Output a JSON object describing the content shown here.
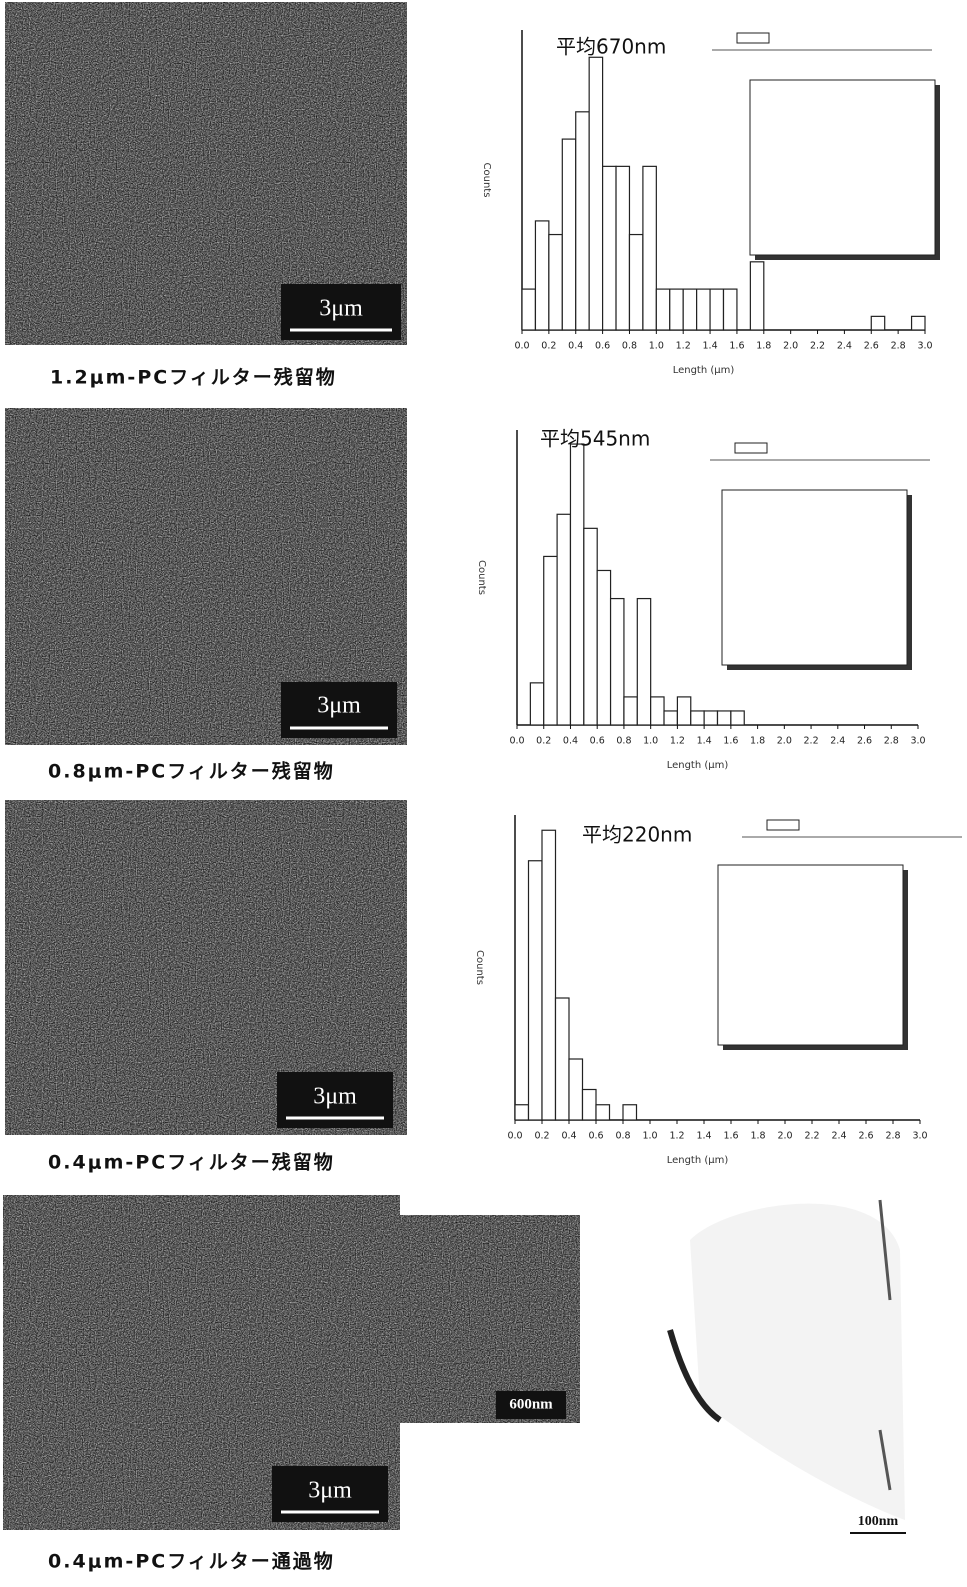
{
  "figures": [
    {
      "caption": "1.2μm-PCフィルター残留物",
      "scale_bar": "3μm"
    },
    {
      "caption": "0.8μm-PCフィルター残留物",
      "scale_bar": "3μm"
    },
    {
      "caption": "0.4μm-PCフィルター残留物",
      "scale_bar": "3μm"
    },
    {
      "caption": "0.4μm-PCフィルター通過物",
      "scale_bar": "3μm",
      "inset_scale_bar": "600nm"
    }
  ],
  "tem_image": {
    "scale_bar": "100nm"
  },
  "chart_data": [
    {
      "type": "histogram",
      "title": "平均670nm",
      "x_label": "Length (μm)",
      "y_label": "Counts",
      "color": "#ffffff",
      "bins": [
        0,
        0.1,
        0.2,
        0.3,
        0.4,
        0.5,
        0.6,
        0.7,
        0.8,
        0.9,
        1.0,
        1.1,
        1.2,
        1.3,
        1.4,
        1.5,
        1.6,
        1.7,
        1.8,
        1.9,
        2.0,
        2.1,
        2.2,
        2.3,
        2.4,
        2.5,
        2.6,
        2.7,
        2.8,
        2.9,
        3.0
      ],
      "values": [
        3,
        8,
        7,
        14,
        16,
        20,
        12,
        12,
        7,
        12,
        3,
        3,
        3,
        3,
        3,
        3,
        0,
        5,
        0,
        0,
        0,
        0,
        0,
        0,
        0,
        0,
        1,
        0,
        0,
        1
      ],
      "xlim": [
        0,
        3.0
      ],
      "ylim": [
        0,
        22
      ],
      "xticks": [
        {
          "value": 0,
          "label": "0.0"
        },
        {
          "value": 0.2,
          "label": "0.2"
        },
        {
          "value": 0.4,
          "label": "0.4"
        },
        {
          "value": 0.6,
          "label": "0.6"
        },
        {
          "value": 0.8,
          "label": "0.8"
        },
        {
          "value": 1.0,
          "label": "1.0"
        },
        {
          "value": 1.2,
          "label": "1.2"
        },
        {
          "value": 1.4,
          "label": "1.4"
        },
        {
          "value": 1.6,
          "label": "1.6"
        },
        {
          "value": 1.8,
          "label": "1.8"
        },
        {
          "value": 2.0,
          "label": "2.0"
        },
        {
          "value": 2.2,
          "label": "2.2"
        },
        {
          "value": 2.4,
          "label": "2.4"
        },
        {
          "value": 2.6,
          "label": "2.6"
        },
        {
          "value": 2.8,
          "label": "2.8"
        },
        {
          "value": 3.0,
          "label": "3.0"
        }
      ]
    },
    {
      "type": "histogram",
      "title": "平均545nm",
      "x_label": "Length (μm)",
      "y_label": "Counts",
      "color": "#ffffff",
      "bins": [
        0,
        0.1,
        0.2,
        0.3,
        0.4,
        0.5,
        0.6,
        0.7,
        0.8,
        0.9,
        1.0,
        1.1,
        1.2,
        1.3,
        1.4,
        1.5,
        1.6,
        1.7,
        1.8,
        1.9,
        2.0,
        2.1,
        2.2,
        2.3,
        2.4,
        2.5,
        2.6,
        2.7,
        2.8,
        2.9,
        3.0
      ],
      "values": [
        0,
        3,
        12,
        15,
        20,
        14,
        11,
        9,
        2,
        9,
        2,
        1,
        2,
        1,
        1,
        1,
        1,
        0,
        0,
        0,
        0,
        0,
        0,
        0,
        0,
        0,
        0,
        0,
        0,
        0
      ],
      "xlim": [
        0,
        3.0
      ],
      "ylim": [
        0,
        21
      ],
      "xticks": [
        {
          "value": 0,
          "label": "0.0"
        },
        {
          "value": 0.2,
          "label": "0.2"
        },
        {
          "value": 0.4,
          "label": "0.4"
        },
        {
          "value": 0.6,
          "label": "0.6"
        },
        {
          "value": 0.8,
          "label": "0.8"
        },
        {
          "value": 1.0,
          "label": "1.0"
        },
        {
          "value": 1.2,
          "label": "1.2"
        },
        {
          "value": 1.4,
          "label": "1.4"
        },
        {
          "value": 1.6,
          "label": "1.6"
        },
        {
          "value": 1.8,
          "label": "1.8"
        },
        {
          "value": 2.0,
          "label": "2.0"
        },
        {
          "value": 2.2,
          "label": "2.2"
        },
        {
          "value": 2.4,
          "label": "2.4"
        },
        {
          "value": 2.6,
          "label": "2.6"
        },
        {
          "value": 2.8,
          "label": "2.8"
        },
        {
          "value": 3.0,
          "label": "3.0"
        }
      ]
    },
    {
      "type": "histogram",
      "title": "平均220nm",
      "x_label": "Length (μm)",
      "y_label": "Counts",
      "color": "#ffffff",
      "bins": [
        0,
        0.1,
        0.2,
        0.3,
        0.4,
        0.5,
        0.6,
        0.7,
        0.8,
        0.9,
        1.0,
        1.1,
        1.2,
        1.3,
        1.4,
        1.5,
        1.6,
        1.7,
        1.8,
        1.9,
        2.0,
        2.1,
        2.2,
        2.3,
        2.4,
        2.5,
        2.6,
        2.7,
        2.8,
        2.9,
        3.0
      ],
      "values": [
        1,
        17,
        19,
        8,
        4,
        2,
        1,
        0,
        1,
        0,
        0,
        0,
        0,
        0,
        0,
        0,
        0,
        0,
        0,
        0,
        0,
        0,
        0,
        0,
        0,
        0,
        0,
        0,
        0,
        0
      ],
      "xlim": [
        0,
        3.0
      ],
      "ylim": [
        0,
        20
      ],
      "xticks": [
        {
          "value": 0,
          "label": "0.0"
        },
        {
          "value": 0.2,
          "label": "0.2"
        },
        {
          "value": 0.4,
          "label": "0.4"
        },
        {
          "value": 0.6,
          "label": "0.6"
        },
        {
          "value": 0.8,
          "label": "0.8"
        },
        {
          "value": 1.0,
          "label": "1.0"
        },
        {
          "value": 1.2,
          "label": "1.2"
        },
        {
          "value": 1.4,
          "label": "1.4"
        },
        {
          "value": 1.6,
          "label": "1.6"
        },
        {
          "value": 1.8,
          "label": "1.8"
        },
        {
          "value": 2.0,
          "label": "2.0"
        },
        {
          "value": 2.2,
          "label": "2.2"
        },
        {
          "value": 2.4,
          "label": "2.4"
        },
        {
          "value": 2.6,
          "label": "2.6"
        },
        {
          "value": 2.8,
          "label": "2.8"
        },
        {
          "value": 3.0,
          "label": "3.0"
        }
      ]
    }
  ]
}
